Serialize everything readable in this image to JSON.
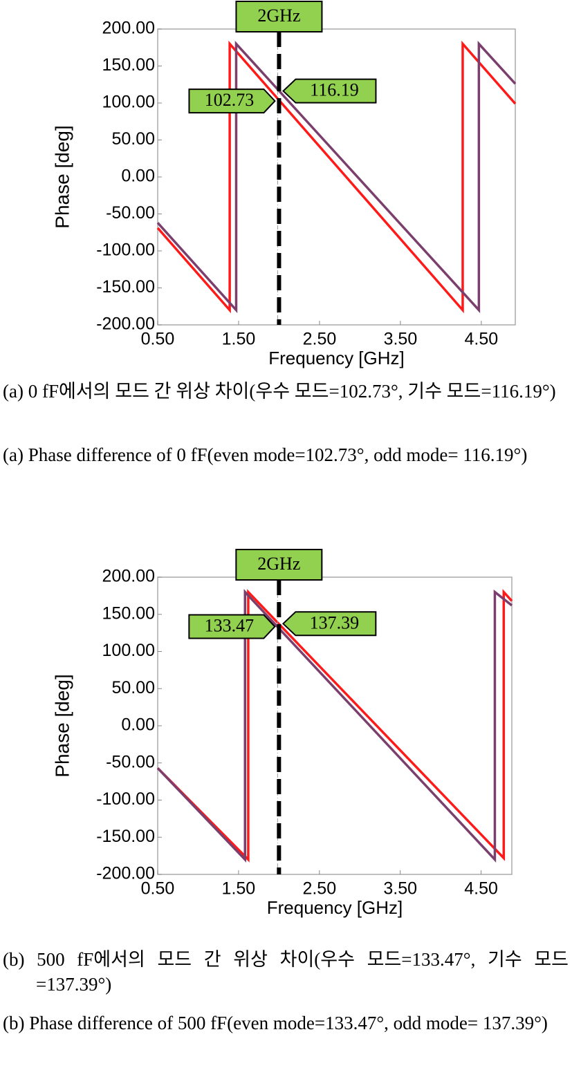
{
  "chart_data": [
    {
      "type": "line",
      "xlabel": "Frequency [GHz]",
      "ylabel": "Phase [deg]",
      "xlim": [
        0.5,
        4.92
      ],
      "ylim": [
        -200,
        200
      ],
      "xticks": [
        {
          "value": 0.5,
          "label": "0.50"
        },
        {
          "value": 1.5,
          "label": "1.50"
        },
        {
          "value": 2.5,
          "label": "2.50"
        },
        {
          "value": 3.5,
          "label": "3.50"
        },
        {
          "value": 4.5,
          "label": "4.50"
        }
      ],
      "yticks": [
        {
          "value": 200,
          "label": "200.00"
        },
        {
          "value": 150,
          "label": "150.00"
        },
        {
          "value": 100,
          "label": "100.00"
        },
        {
          "value": 50,
          "label": "50.00"
        },
        {
          "value": 0,
          "label": "0.00"
        },
        {
          "value": -50,
          "label": "-50.00"
        },
        {
          "value": -100,
          "label": "-100.00"
        },
        {
          "value": -150,
          "label": "-150.00"
        },
        {
          "value": -200,
          "label": "-200.00"
        }
      ],
      "marker_x": 2,
      "marker_label": "2GHz",
      "marker_values": [
        102.73,
        116.19
      ],
      "series": [
        {
          "color": "#ff1a1a",
          "x": [
            0.5,
            1.39,
            1.39,
            4.27,
            4.27,
            4.92
          ],
          "values": [
            -69,
            -180,
            180,
            -180,
            180,
            99
          ]
        },
        {
          "color": "#7b3f6e",
          "x": [
            0.5,
            1.47,
            1.47,
            4.47,
            4.47,
            4.92
          ],
          "values": [
            -62,
            -180,
            180,
            -180,
            180,
            126
          ]
        }
      ]
    },
    {
      "type": "line",
      "xlabel": "Frequency [GHz]",
      "ylabel": "Phase [deg]",
      "xlim": [
        0.5,
        4.88
      ],
      "ylim": [
        -200,
        200
      ],
      "xticks": [
        {
          "value": 0.5,
          "label": "0.50"
        },
        {
          "value": 1.5,
          "label": "1.50"
        },
        {
          "value": 2.5,
          "label": "2.50"
        },
        {
          "value": 3.5,
          "label": "3.50"
        },
        {
          "value": 4.5,
          "label": "4.50"
        }
      ],
      "yticks": [
        {
          "value": 200,
          "label": "200.00"
        },
        {
          "value": 150,
          "label": "150.00"
        },
        {
          "value": 100,
          "label": "100.00"
        },
        {
          "value": 50,
          "label": "50.00"
        },
        {
          "value": 0,
          "label": "0.00"
        },
        {
          "value": -50,
          "label": "-50.00"
        },
        {
          "value": -100,
          "label": "-100.00"
        },
        {
          "value": -150,
          "label": "-150.00"
        },
        {
          "value": -200,
          "label": "-200.00"
        }
      ],
      "marker_x": 2,
      "marker_label": "2GHz",
      "marker_values": [
        133.47,
        137.39
      ],
      "series": [
        {
          "color": "#ff1a1a",
          "x": [
            0.5,
            1.62,
            1.62,
            4.78,
            4.78,
            4.88
          ],
          "values": [
            -57,
            -180,
            180,
            -178,
            180,
            168
          ]
        },
        {
          "color": "#7b3f6e",
          "x": [
            0.5,
            1.58,
            1.58,
            4.67,
            4.67,
            4.88
          ],
          "values": [
            -57,
            -180,
            180,
            -180,
            180,
            162
          ]
        }
      ]
    }
  ],
  "captions": [
    [
      "(a) 0 fF에서의 모드 간 위상 차이(우수 모드=102.73°, 기수 모드=116.19°)",
      "(a) Phase difference of 0 fF(even mode=102.73°, odd mode= 116.19°)"
    ],
    [
      "(b) 500 fF에서의 모드 간 위상 차이(우수 모드=133.47°, 기수 모드=137.39°)",
      "(b) Phase difference of 500 fF(even mode=133.47°, odd mode= 137.39°)"
    ]
  ]
}
